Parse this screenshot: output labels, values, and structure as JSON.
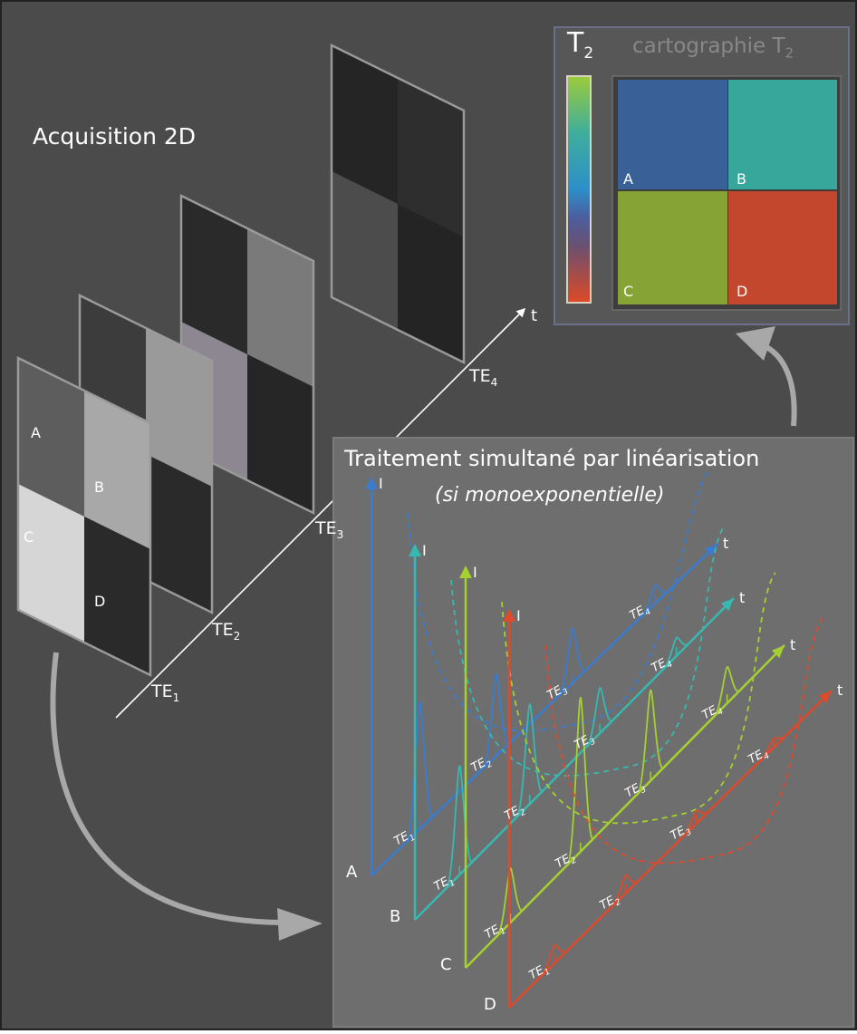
{
  "title": "Acquisition 2D",
  "acquisition": {
    "time_axis_label": "t",
    "echo_times": [
      {
        "base": "TE",
        "sub": "1"
      },
      {
        "base": "TE",
        "sub": "2"
      },
      {
        "base": "TE",
        "sub": "3"
      },
      {
        "base": "TE",
        "sub": "4"
      }
    ],
    "first_slice_labels": [
      "A",
      "B",
      "C",
      "D"
    ],
    "slice_intensities": [
      {
        "A": "#5d5d5d",
        "B": "#a8a8a8",
        "C": "#d6d6d6",
        "D": "#2a2a2a"
      },
      {
        "A": "#3c3c3c",
        "B": "#9a9a9a",
        "C": "#555555",
        "D": "#2a2a2a"
      },
      {
        "A": "#2a2a2a",
        "B": "#7a7a7a",
        "C": "#8c8790",
        "D": "#262626"
      },
      {
        "A": "#252525",
        "B": "#2e2e2e",
        "C": "#4c4c4c",
        "D": "#242424"
      }
    ]
  },
  "t2_map": {
    "title": "cartographie T",
    "title_sub": "2",
    "colorbar_label": "T",
    "colorbar_label_sub": "2",
    "cells": [
      {
        "label": "A",
        "color": "#3a6098"
      },
      {
        "label": "B",
        "color": "#37a79c"
      },
      {
        "label": "C",
        "color": "#86a335"
      },
      {
        "label": "D",
        "color": "#c3472c"
      }
    ]
  },
  "processing": {
    "title": "Traitement simultané par linéarisation",
    "subtitle": "(si monoexponentielle)",
    "intensity_axis_label": "I",
    "time_axis_label": "t",
    "series": [
      {
        "label": "A",
        "color": "#3b7ccf"
      },
      {
        "label": "B",
        "color": "#37b8b0"
      },
      {
        "label": "C",
        "color": "#a6cf30"
      },
      {
        "label": "D",
        "color": "#dd4a2c"
      }
    ],
    "echo_labels": [
      {
        "base": "TE",
        "sub": "1"
      },
      {
        "base": "TE",
        "sub": "2"
      },
      {
        "base": "TE",
        "sub": "3"
      },
      {
        "base": "TE",
        "sub": "4"
      }
    ]
  }
}
